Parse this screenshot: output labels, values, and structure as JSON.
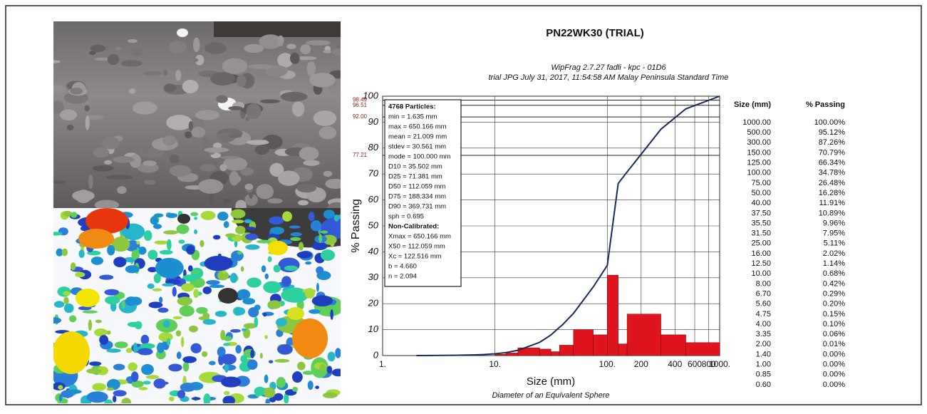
{
  "chart_data": {
    "type": "line",
    "title": "PN22WK30 (TRIAL)",
    "subtitle": [
      "WipFrag 2.7.27   fadli - kpc - 01D6",
      "trial JPG   July 31, 2017, 11:54:58 AM Malay Peninsula Standard Time"
    ],
    "x_label": "Size (mm)",
    "x_sublabel": "Diameter of an Equivalent Sphere",
    "y_label": "% Passing",
    "x_scale": "log",
    "xlim": [
      1,
      1000
    ],
    "xticks": [
      {
        "value": 1,
        "label": "1."
      },
      {
        "value": 10,
        "label": "10."
      },
      {
        "value": 100,
        "label": "100."
      },
      200,
      400,
      600,
      800,
      {
        "value": 1000,
        "label": "1000."
      }
    ],
    "ylim": [
      0,
      100
    ],
    "yticks": [
      0,
      10,
      20,
      30,
      40,
      50,
      60,
      70,
      80,
      90,
      100
    ],
    "grid": true,
    "series": [
      {
        "color": "#1a2a5a",
        "x": [
          2,
          3.35,
          4,
          4.75,
          5.6,
          6.7,
          8,
          10,
          12.5,
          16,
          25,
          31.5,
          35.5,
          37.5,
          40,
          50,
          75,
          100,
          125,
          150,
          300,
          500,
          1000
        ],
        "values": [
          0.01,
          0.06,
          0.1,
          0.15,
          0.2,
          0.29,
          0.42,
          0.68,
          1.14,
          2.02,
          5.11,
          7.95,
          9.96,
          10.89,
          11.91,
          16.28,
          26.48,
          34.78,
          66.34,
          70.79,
          87.26,
          95.12,
          100
        ]
      }
    ],
    "histogram": {
      "color": "#e0141e",
      "bins": [
        10,
        12.5,
        16,
        25,
        31.5,
        37.5,
        50,
        75,
        100,
        125,
        150,
        300,
        500,
        1000
      ],
      "values": [
        0.5,
        1,
        3,
        2.5,
        1.5,
        4,
        10,
        8,
        31,
        4.5,
        16,
        8,
        5
      ]
    },
    "reference_lines": [
      98.49,
      96.51,
      {
        "value": 92,
        "label": "92.00"
      },
      77.21
    ],
    "annotation_box": [
      "4768 Particles:",
      "min = 1.635 mm",
      "max = 650.166 mm",
      "mean = 21.009 mm",
      "stdev = 30.561 mm",
      "mode = 100.000 mm",
      "D10 = 35.502 mm",
      "D25 = 71.381 mm",
      "D50 = 112.059 mm",
      "D75 = 188.334 mm",
      "D90 = 369.731 mm",
      "sph = 0.695",
      "Non-Calibrated:",
      "Xmax = 650.166 mm",
      "X50 = 112.059 mm",
      "Xc = 122.516 mm",
      "b = 4.660",
      "n = 2.094"
    ]
  },
  "table": {
    "header": [
      "Size (mm)",
      "% Passing"
    ],
    "rows": [
      [
        "1000.00",
        "100.00%"
      ],
      [
        "500.00",
        "95.12%"
      ],
      [
        "300.00",
        "87.26%"
      ],
      [
        "150.00",
        "70.79%"
      ],
      [
        "125.00",
        "66.34%"
      ],
      [
        "100.00",
        "34.78%"
      ],
      [
        "75.00",
        "26.48%"
      ],
      [
        "50.00",
        "16.28%"
      ],
      [
        "40.00",
        "11.91%"
      ],
      [
        "37.50",
        "10.89%"
      ],
      [
        "35.50",
        "9.96%"
      ],
      [
        "31.50",
        "7.95%"
      ],
      [
        "25.00",
        "5.11%"
      ],
      [
        "16.00",
        "2.02%"
      ],
      [
        "12.50",
        "1.14%"
      ],
      [
        "10.00",
        "0.68%"
      ],
      [
        "8.00",
        "0.42%"
      ],
      [
        "6.70",
        "0.29%"
      ],
      [
        "5.60",
        "0.20%"
      ],
      [
        "4.75",
        "0.15%"
      ],
      [
        "4.00",
        "0.10%"
      ],
      [
        "3.35",
        "0.06%"
      ],
      [
        "2.00",
        "0.01%"
      ],
      [
        "1.40",
        "0.00%"
      ],
      [
        "1.00",
        "0.00%"
      ],
      [
        "0.85",
        "0.00%"
      ],
      [
        "0.60",
        "0.00%"
      ]
    ]
  }
}
